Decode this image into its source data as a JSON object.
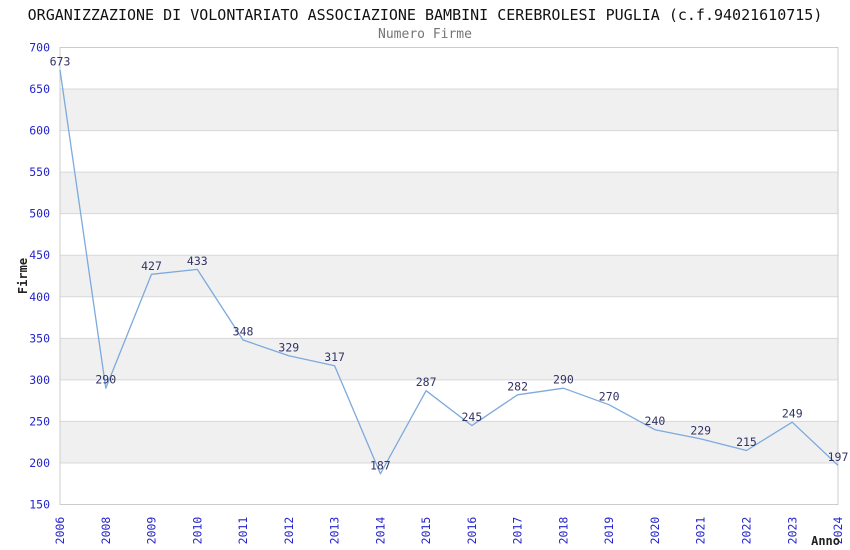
{
  "title": "ORGANIZZAZIONE DI VOLONTARIATO ASSOCIAZIONE BAMBINI CEREBROLESI PUGLIA (c.f.94021610715)",
  "subtitle": "Numero Firme",
  "chart_data": {
    "type": "line",
    "title": "Numero Firme",
    "xlabel": "Anno",
    "ylabel": "Firme",
    "categories": [
      "2006",
      "2008",
      "2009",
      "2010",
      "2011",
      "2012",
      "2013",
      "2014",
      "2015",
      "2016",
      "2017",
      "2018",
      "2019",
      "2020",
      "2021",
      "2022",
      "2023",
      "2024"
    ],
    "values": [
      673,
      290,
      427,
      433,
      348,
      329,
      317,
      187,
      287,
      245,
      282,
      290,
      270,
      240,
      229,
      215,
      249,
      197
    ],
    "ylim": [
      150,
      700
    ],
    "ytick_step": 50,
    "grid": "alternating-horizontal-bands",
    "legend": "none",
    "data_labels": "on",
    "notes": "year 2007 absent from x axis",
    "colors": {
      "line": "#7caade",
      "tick_label": "#2424cd",
      "value_label": "#333366",
      "band_fill": "#f0f0f0",
      "gridline": "#d8d8d8",
      "plot_border": "#cccccc",
      "title_text": "#111111",
      "subtitle_text": "#757575",
      "axis_title_text": "#222222",
      "background": "#ffffff"
    }
  }
}
